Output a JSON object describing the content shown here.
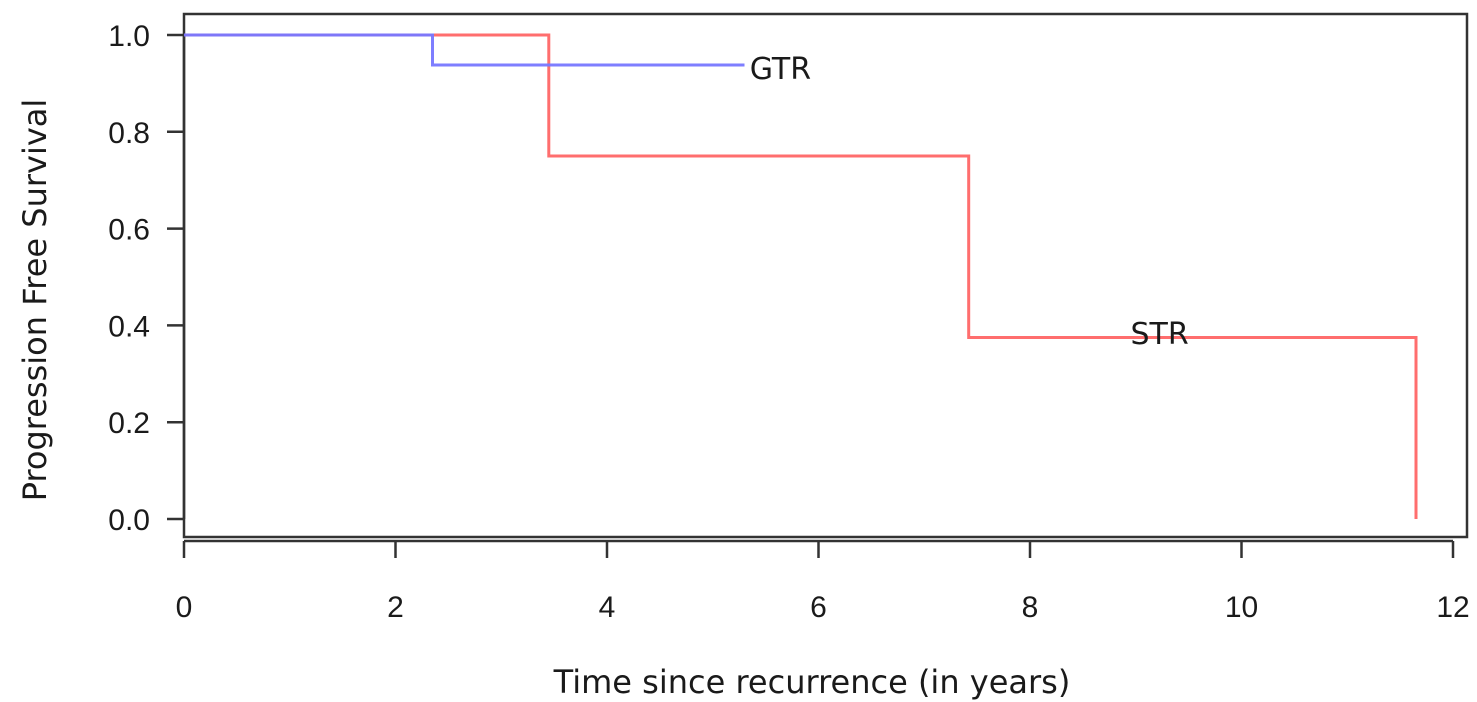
{
  "chart_data": {
    "type": "line",
    "step": true,
    "xlabel": "Time since recurrence (in years)",
    "ylabel": "Progression Free Survival",
    "xlim": [
      0,
      12
    ],
    "ylim": [
      0,
      1
    ],
    "x_ticks": [
      "0",
      "2",
      "4",
      "6",
      "8",
      "10",
      "12"
    ],
    "y_ticks": [
      "0.0",
      "0.2",
      "0.4",
      "0.6",
      "0.8",
      "1.0"
    ],
    "grid": false,
    "series": [
      {
        "name": "STR",
        "color": "#ff6666",
        "points": [
          [
            0,
            1.0
          ],
          [
            3.45,
            1.0
          ],
          [
            3.45,
            0.75
          ],
          [
            7.42,
            0.75
          ],
          [
            7.42,
            0.375
          ],
          [
            11.65,
            0.375
          ],
          [
            11.65,
            0.0
          ]
        ]
      },
      {
        "name": "GTR",
        "color": "#7777ff",
        "points": [
          [
            0,
            1.0
          ],
          [
            2.35,
            1.0
          ],
          [
            2.35,
            0.938
          ],
          [
            5.3,
            0.938
          ]
        ]
      }
    ],
    "series_labels": [
      {
        "text": "GTR",
        "x": 5.35,
        "y": 0.938
      },
      {
        "text": "STR",
        "x": 8.95,
        "y": 0.39
      }
    ]
  }
}
